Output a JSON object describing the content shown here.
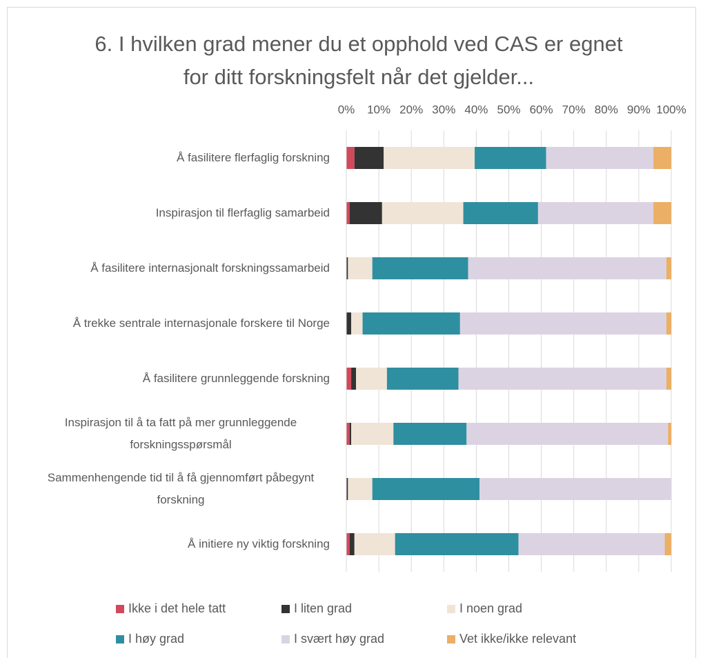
{
  "chart_data": {
    "type": "stacked_bar_horizontal",
    "title": "6. I hvilken grad mener du et opphold ved CAS er egnet for ditt forskningsfelt når det gjelder...",
    "categories": [
      "Å fasilitere flerfaglig forskning",
      "Inspirasjon til flerfaglig samarbeid",
      "Å fasilitere internasjonalt forskningssamarbeid",
      "Å trekke sentrale internasjonale forskere til Norge",
      "Å fasilitere grunnleggende forskning",
      "Inspirasjon til å ta fatt på mer grunnleggende forskningsspørsmål",
      "Sammenhengende tid til å få gjennomført påbegynt forskning",
      "Å initiere ny viktig forskning"
    ],
    "series": [
      {
        "name": "Ikke i det hele tatt",
        "color": "#d1495b",
        "values": [
          2.5,
          1,
          0,
          0,
          1.5,
          1,
          0,
          1
        ]
      },
      {
        "name": "I liten grad",
        "color": "#333333",
        "values": [
          9,
          10,
          0.5,
          1.5,
          1.5,
          0.5,
          0.5,
          1.5
        ]
      },
      {
        "name": "I noen grad",
        "color": "#efe4d6",
        "values": [
          28,
          25,
          7.5,
          3.5,
          9.5,
          13,
          7.5,
          12.5
        ]
      },
      {
        "name": "I høy grad",
        "color": "#2e8fa0",
        "values": [
          22,
          23,
          29.5,
          30,
          22,
          22.5,
          33,
          38
        ]
      },
      {
        "name": "I svært høy grad",
        "color": "#dcd3e2",
        "values": [
          33,
          35.5,
          61,
          63.5,
          64,
          62,
          59,
          45
        ]
      },
      {
        "name": "Vet ikke/ikke relevant",
        "color": "#ebaf65",
        "values": [
          5.5,
          5.5,
          1.5,
          1.5,
          1.5,
          1,
          0,
          2
        ]
      }
    ],
    "xlim": [
      0,
      100
    ],
    "xticks": [
      {
        "value": 0,
        "label": "0%"
      },
      {
        "value": 10,
        "label": "10%"
      },
      {
        "value": 20,
        "label": "20%"
      },
      {
        "value": 30,
        "label": "30%"
      },
      {
        "value": 40,
        "label": "40%"
      },
      {
        "value": 50,
        "label": "50%"
      },
      {
        "value": 60,
        "label": "60%"
      },
      {
        "value": 70,
        "label": "70%"
      },
      {
        "value": 80,
        "label": "80%"
      },
      {
        "value": 90,
        "label": "90%"
      },
      {
        "value": 100,
        "label": "100%"
      }
    ],
    "grid": true
  }
}
